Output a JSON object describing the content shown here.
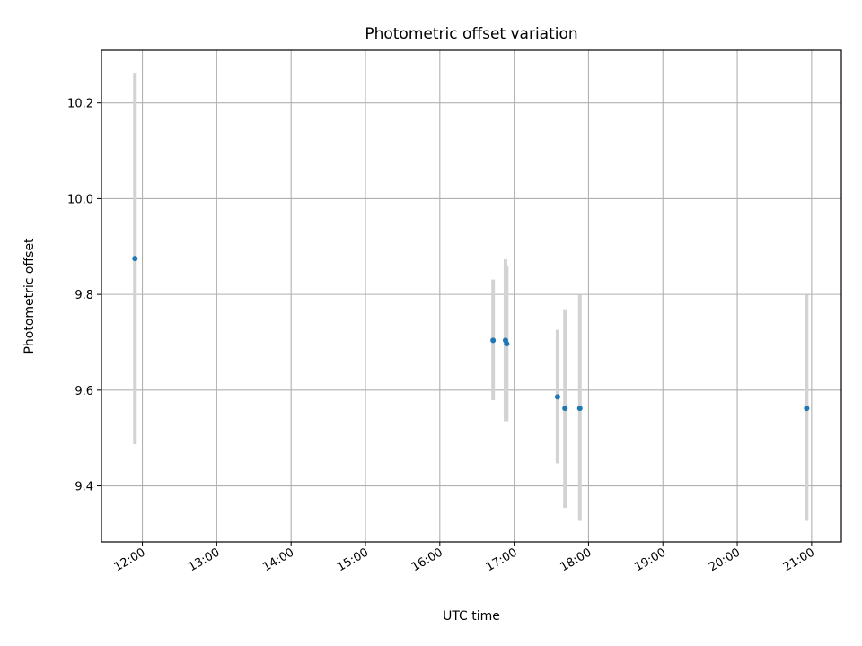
{
  "chart_data": {
    "type": "scatter",
    "title": "Photometric offset variation",
    "xlabel": "UTC time",
    "ylabel": "Photometric offset",
    "x_type": "time",
    "xlim": [
      "11:27",
      "21:24"
    ],
    "ylim": [
      9.283,
      10.31
    ],
    "grid": true,
    "legend": "none",
    "x_ticks": [
      "12:00",
      "13:00",
      "14:00",
      "15:00",
      "16:00",
      "17:00",
      "18:00",
      "19:00",
      "20:00",
      "21:00"
    ],
    "y_ticks": [
      9.4,
      9.6,
      9.8,
      10.0,
      10.2
    ],
    "y_tick_labels": [
      "9.4",
      "9.6",
      "9.8",
      "10.0",
      "10.2"
    ],
    "colors": {
      "point": "#1f77b4",
      "errorbar": "#d3d3d3",
      "grid": "#b0b0b0"
    },
    "points": [
      {
        "x": "11:54",
        "y": 9.875,
        "ylow": 9.487,
        "yhigh": 10.263
      },
      {
        "x": "16:43",
        "y": 9.704,
        "ylow": 9.579,
        "yhigh": 9.831
      },
      {
        "x": "16:53",
        "y": 9.704,
        "ylow": 9.535,
        "yhigh": 9.873
      },
      {
        "x": "16:54",
        "y": 9.697,
        "ylow": 9.535,
        "yhigh": 9.859
      },
      {
        "x": "17:35",
        "y": 9.586,
        "ylow": 9.447,
        "yhigh": 9.726
      },
      {
        "x": "17:41",
        "y": 9.562,
        "ylow": 9.354,
        "yhigh": 9.769
      },
      {
        "x": "17:53",
        "y": 9.562,
        "ylow": 9.327,
        "yhigh": 9.799
      },
      {
        "x": "20:56",
        "y": 9.562,
        "ylow": 9.327,
        "yhigh": 9.799
      }
    ]
  }
}
